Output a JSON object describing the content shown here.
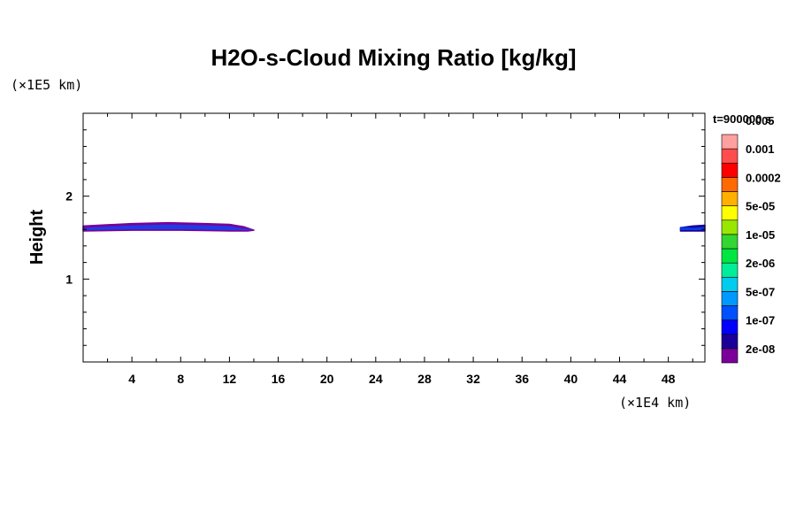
{
  "chart_data": {
    "type": "heatmap",
    "title": "H2O-s-Cloud Mixing Ratio [kg/kg]",
    "xlabel": "",
    "ylabel": "Height",
    "x_scale_label": "(×1E4 km)",
    "y_scale_label": "(×1E5 km)",
    "time_label": "t=900000 s",
    "xlim": [
      0,
      51
    ],
    "ylim": [
      0,
      3
    ],
    "x_ticks": [
      4,
      8,
      12,
      16,
      20,
      24,
      28,
      32,
      36,
      40,
      44,
      48
    ],
    "y_ticks": [
      1,
      2
    ],
    "colorbar": {
      "colors": [
        "#7b0099",
        "#1a0099",
        "#0000ff",
        "#0050ff",
        "#0099ff",
        "#00ccee",
        "#00ee99",
        "#00e640",
        "#33d633",
        "#99e600",
        "#ffff00",
        "#ffb000",
        "#ff6a00",
        "#ff0000",
        "#ff4d4d",
        "#ffa0a0"
      ],
      "labels": [
        "2e-08",
        "1e-07",
        "5e-07",
        "2e-06",
        "1e-05",
        "5e-05",
        "0.0002",
        "0.001",
        "0.005"
      ]
    },
    "regions": [
      {
        "name": "cloud-layer-left",
        "points": [
          [
            0,
            1.64
          ],
          [
            4,
            1.67
          ],
          [
            7,
            1.68
          ],
          [
            10,
            1.67
          ],
          [
            12,
            1.66
          ],
          [
            13.2,
            1.63
          ],
          [
            14,
            1.59
          ],
          [
            13.5,
            1.58
          ],
          [
            12,
            1.58
          ],
          [
            8,
            1.59
          ],
          [
            4,
            1.59
          ],
          [
            0,
            1.58
          ]
        ],
        "outer_color": "#7b0099",
        "inner_color": "#0050ff"
      },
      {
        "name": "cloud-layer-right",
        "points": [
          [
            49,
            1.62
          ],
          [
            50,
            1.64
          ],
          [
            51,
            1.65
          ],
          [
            51,
            1.58
          ],
          [
            50,
            1.58
          ],
          [
            49,
            1.58
          ]
        ],
        "outer_color": "#1a0099",
        "inner_color": "#0050ff"
      }
    ]
  }
}
